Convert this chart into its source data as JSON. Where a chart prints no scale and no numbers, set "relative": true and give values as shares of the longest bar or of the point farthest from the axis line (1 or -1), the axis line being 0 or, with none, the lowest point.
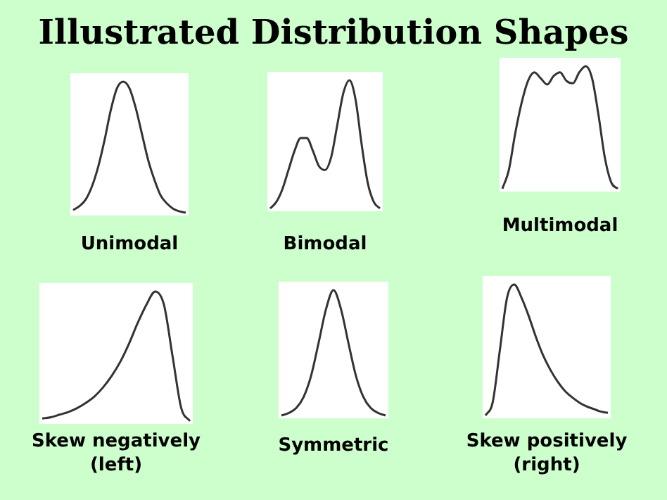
{
  "chart_data": [
    {
      "type": "line",
      "title": "Illustrated Distribution Shapes",
      "xlabel": "Unimodal",
      "relative": true,
      "tick_labels": false,
      "color": "#333333",
      "categories": [
        null,
        null,
        null,
        null,
        null,
        null,
        null,
        null,
        null,
        null,
        null,
        null,
        null,
        null,
        null,
        null,
        null,
        null,
        null
      ],
      "values": [
        0.02,
        0.05,
        0.1,
        0.2,
        0.35,
        0.55,
        0.78,
        0.95,
        1,
        0.95,
        0.8,
        0.6,
        0.4,
        0.25,
        0.13,
        0.07,
        0.03,
        0.01,
        0
      ]
    },
    {
      "type": "line",
      "xlabel": "Bimodal",
      "relative": true,
      "tick_labels": false,
      "color": "#333333",
      "categories": [
        null,
        null,
        null,
        null,
        null,
        null,
        null,
        null,
        null,
        null,
        null,
        null,
        null,
        null,
        null,
        null,
        null,
        null,
        null
      ],
      "values": [
        0,
        0.05,
        0.15,
        0.3,
        0.45,
        0.55,
        0.55,
        0.45,
        0.33,
        0.3,
        0.4,
        0.65,
        0.9,
        1,
        0.85,
        0.5,
        0.2,
        0.05,
        0
      ]
    },
    {
      "type": "line",
      "xlabel": "Multimodal",
      "relative": true,
      "tick_labels": false,
      "color": "#333333",
      "categories": [
        null,
        null,
        null,
        null,
        null,
        null,
        null,
        null,
        null,
        null,
        null,
        null,
        null,
        null,
        null,
        null,
        null,
        null,
        null
      ],
      "values": [
        0,
        0.15,
        0.45,
        0.7,
        0.88,
        0.95,
        0.9,
        0.85,
        0.92,
        0.95,
        0.88,
        0.86,
        0.95,
        1,
        0.9,
        0.6,
        0.25,
        0.05,
        0
      ]
    },
    {
      "type": "line",
      "xlabel": "Skew negatively (left)",
      "relative": true,
      "tick_labels": false,
      "color": "#333333",
      "categories": [
        null,
        null,
        null,
        null,
        null,
        null,
        null,
        null,
        null,
        null,
        null,
        null,
        null,
        null,
        null,
        null,
        null,
        null
      ],
      "values": [
        0.02,
        0.03,
        0.05,
        0.07,
        0.1,
        0.14,
        0.19,
        0.26,
        0.35,
        0.46,
        0.6,
        0.76,
        0.9,
        1,
        0.9,
        0.5,
        0.1,
        0
      ]
    },
    {
      "type": "line",
      "xlabel": "Symmetric",
      "relative": true,
      "tick_labels": false,
      "color": "#333333",
      "categories": [
        null,
        null,
        null,
        null,
        null,
        null,
        null,
        null,
        null,
        null,
        null,
        null,
        null,
        null,
        null
      ],
      "values": [
        0,
        0.02,
        0.06,
        0.15,
        0.32,
        0.58,
        0.85,
        1,
        0.85,
        0.58,
        0.32,
        0.15,
        0.06,
        0.02,
        0
      ]
    },
    {
      "type": "line",
      "xlabel": "Skew positively (right)",
      "relative": true,
      "tick_labels": false,
      "color": "#333333",
      "categories": [
        null,
        null,
        null,
        null,
        null,
        null,
        null,
        null,
        null,
        null,
        null,
        null,
        null,
        null,
        null,
        null,
        null,
        null
      ],
      "values": [
        0,
        0.1,
        0.5,
        0.9,
        1,
        0.9,
        0.76,
        0.6,
        0.46,
        0.35,
        0.26,
        0.19,
        0.14,
        0.1,
        0.07,
        0.05,
        0.03,
        0.02
      ]
    }
  ]
}
